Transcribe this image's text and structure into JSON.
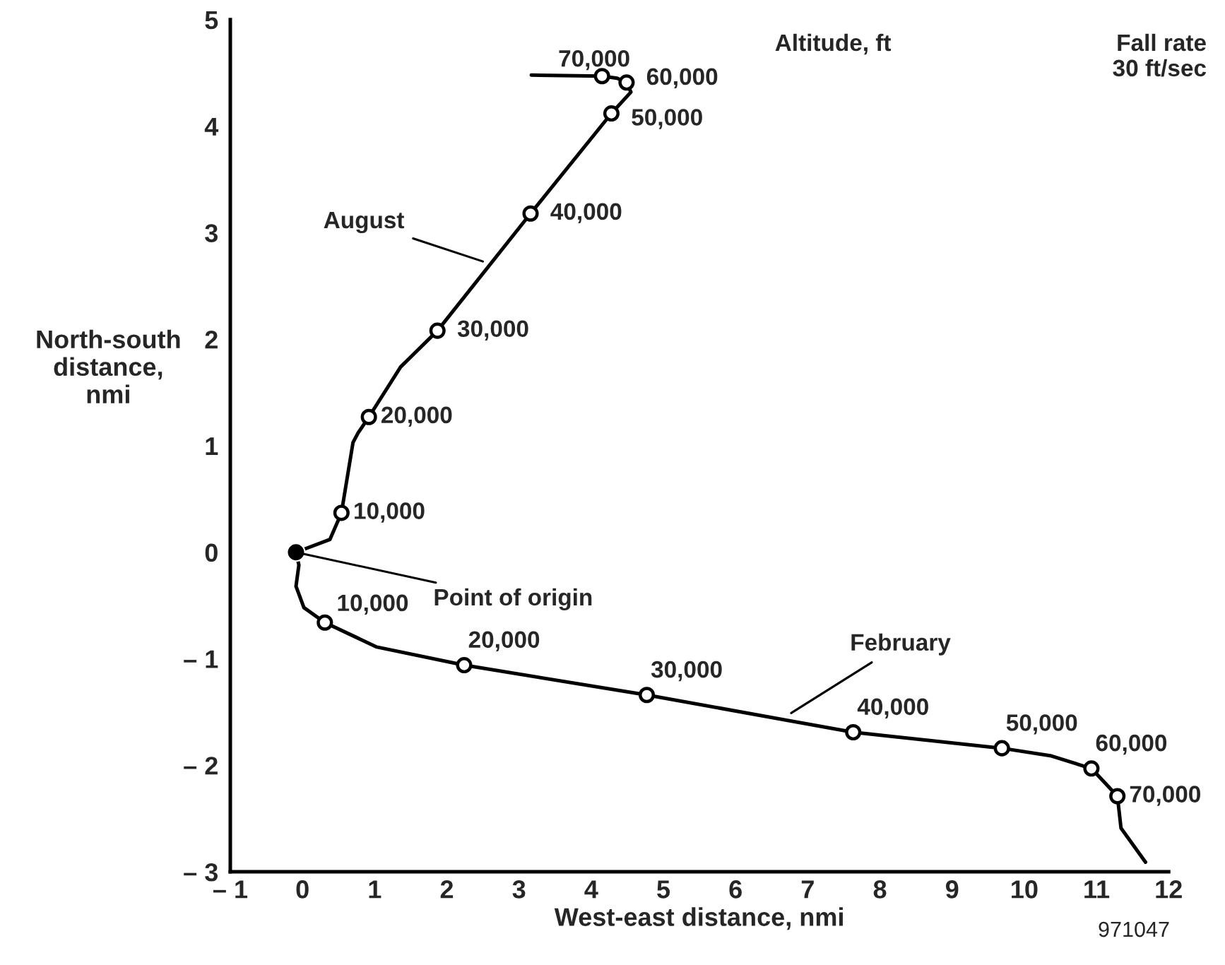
{
  "chart_data": {
    "type": "line",
    "xlabel": "West-east distance, nmi",
    "ylabel": "North-south\ndistance,\nnmi",
    "xlim": [
      -1,
      12
    ],
    "ylim": [
      -3,
      5
    ],
    "xticks": [
      {
        "value": -1,
        "label": "– 1"
      },
      0,
      1,
      2,
      3,
      4,
      5,
      6,
      7,
      8,
      9,
      10,
      11,
      12
    ],
    "yticks": [
      {
        "value": -3,
        "label": "– 3"
      },
      {
        "value": -2,
        "label": "– 2"
      },
      {
        "value": -1,
        "label": "– 1"
      },
      0,
      1,
      2,
      3,
      4,
      5
    ],
    "grid": false,
    "legend": false,
    "series": [
      {
        "color": "#000000",
        "x": [
          -0.09,
          0.38,
          0.54,
          0.7,
          0.77,
          0.92,
          1.36,
          1.87,
          3.16,
          4.28,
          4.55,
          4.49,
          4.36,
          4.15,
          3.17
        ],
        "values": [
          0.0,
          0.12,
          0.37,
          1.03,
          1.12,
          1.27,
          1.74,
          2.08,
          3.18,
          4.12,
          4.32,
          4.41,
          4.45,
          4.47,
          4.48
        ]
      },
      {
        "color": "#000000",
        "x": [
          -0.09,
          -0.05,
          -0.09,
          0.02,
          0.31,
          1.03,
          2.24,
          4.77,
          7.63,
          9.69,
          10.36,
          10.93,
          11.29,
          11.34,
          11.68
        ],
        "values": [
          0.0,
          -0.12,
          -0.32,
          -0.52,
          -0.66,
          -0.89,
          -1.06,
          -1.34,
          -1.69,
          -1.84,
          -1.91,
          -2.03,
          -2.29,
          -2.59,
          -2.91
        ]
      },
      {
        "type": "scatter",
        "marker": "circle",
        "color": "#000000",
        "x": [
          0.54,
          0.92,
          1.87,
          3.16,
          4.28,
          4.49,
          4.15
        ],
        "values": [
          0.37,
          1.27,
          2.08,
          3.18,
          4.12,
          4.41,
          4.47
        ]
      },
      {
        "type": "scatter",
        "marker": "circle",
        "color": "#000000",
        "x": [
          0.31,
          2.24,
          4.77,
          7.63,
          9.69,
          10.93,
          11.29
        ],
        "values": [
          -0.66,
          -1.06,
          -1.34,
          -1.69,
          -1.84,
          -2.03,
          -2.29
        ]
      },
      {
        "marker": "circle",
        "color": "#000000",
        "x": [
          -0.09
        ],
        "values": [
          0.0
        ]
      }
    ],
    "annotations": [
      {
        "text": "10,000",
        "x": 0.54,
        "y": 0.37
      },
      {
        "text": "20,000",
        "x": 0.92,
        "y": 1.27
      },
      {
        "text": "30,000",
        "x": 1.87,
        "y": 2.08
      },
      {
        "text": "40,000",
        "x": 3.16,
        "y": 3.18
      },
      {
        "text": "50,000",
        "x": 4.28,
        "y": 4.12
      },
      {
        "text": "60,000",
        "x": 4.49,
        "y": 4.41
      },
      {
        "text": "70,000",
        "x": 4.15,
        "y": 4.47
      },
      {
        "text": "10,000",
        "x": 0.31,
        "y": -0.66
      },
      {
        "text": "20,000",
        "x": 2.24,
        "y": -1.06
      },
      {
        "text": "30,000",
        "x": 4.77,
        "y": -1.34
      },
      {
        "text": "40,000",
        "x": 7.63,
        "y": -1.69
      },
      {
        "text": "50,000",
        "x": 9.69,
        "y": -1.84
      },
      {
        "text": "60,000",
        "x": 10.93,
        "y": -2.03
      },
      {
        "text": "70,000",
        "x": 11.29,
        "y": -2.29
      },
      {
        "text": "August",
        "x": 2.5,
        "y": 2.73
      },
      {
        "text": "February",
        "x": 6.77,
        "y": -1.51
      },
      {
        "text": "Point of origin",
        "x": -0.09,
        "y": 0.0
      },
      "Altitude, ft",
      "Fall rate\n30 ft/sec",
      "971047"
    ]
  }
}
